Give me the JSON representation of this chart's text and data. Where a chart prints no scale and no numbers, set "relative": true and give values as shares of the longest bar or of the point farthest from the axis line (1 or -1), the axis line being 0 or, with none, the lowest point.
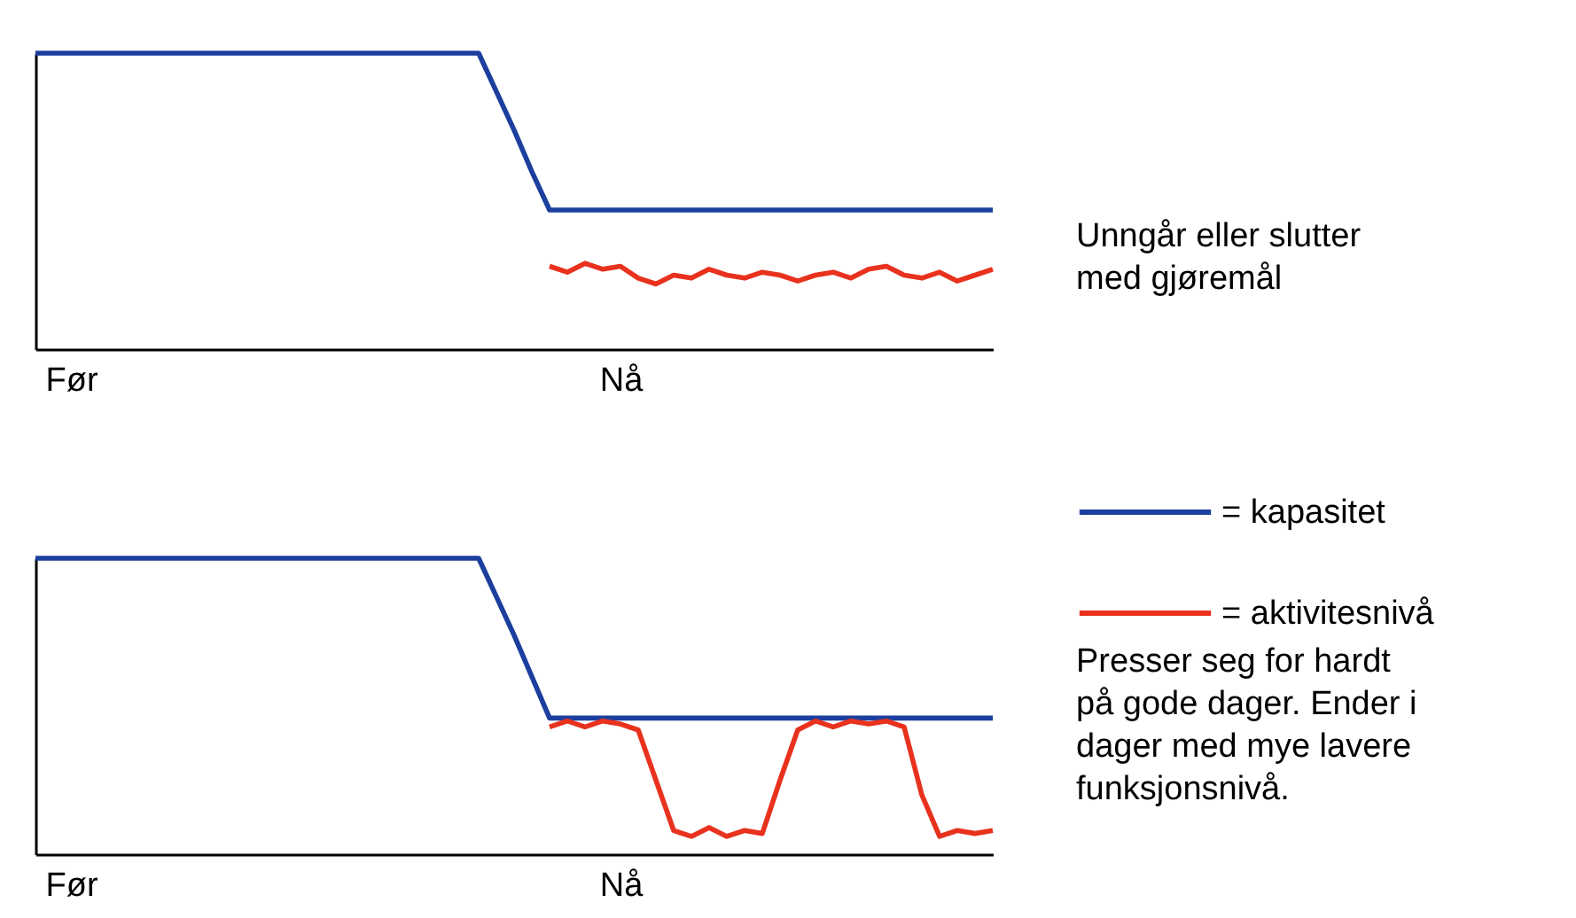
{
  "chart_data": [
    {
      "type": "line",
      "relative": true,
      "categories": [
        null,
        null,
        "Før",
        null,
        null,
        null,
        null,
        null,
        null,
        null,
        null,
        null,
        null,
        null,
        null,
        null,
        null,
        null,
        null,
        null,
        null,
        null,
        null,
        null,
        null,
        null,
        null,
        null,
        null,
        null,
        null,
        null,
        null,
        "Nå",
        null,
        null,
        null,
        null,
        null,
        null,
        null,
        null,
        null,
        null,
        null,
        null,
        null,
        null,
        null,
        null,
        null,
        null,
        null,
        null,
        null
      ],
      "series": [
        {
          "name": "= kapasitet",
          "color": "#1c3f9e",
          "values": [
            1,
            1,
            1,
            1,
            1,
            1,
            1,
            1,
            1,
            1,
            1,
            1,
            1,
            1,
            1,
            1,
            1,
            1,
            1,
            1,
            1,
            1,
            1,
            1,
            1,
            1,
            0.87,
            0.74,
            0.6,
            0.47,
            0.47,
            0.47,
            0.47,
            0.47,
            0.47,
            0.47,
            0.47,
            0.47,
            0.47,
            0.47,
            0.47,
            0.47,
            0.47,
            0.47,
            0.47,
            0.47,
            0.47,
            0.47,
            0.47,
            0.47,
            0.47,
            0.47,
            0.47,
            0.47,
            0.47
          ]
        },
        {
          "name": "= aktivitesnivå",
          "color": "#e8321e",
          "values": [
            null,
            null,
            null,
            null,
            null,
            null,
            null,
            null,
            null,
            null,
            null,
            null,
            null,
            null,
            null,
            null,
            null,
            null,
            null,
            null,
            null,
            null,
            null,
            null,
            null,
            null,
            null,
            null,
            null,
            0.28,
            0.26,
            0.29,
            0.27,
            0.28,
            0.24,
            0.22,
            0.25,
            0.24,
            0.27,
            0.25,
            0.24,
            0.26,
            0.25,
            0.23,
            0.25,
            0.26,
            0.24,
            0.27,
            0.28,
            0.25,
            0.24,
            0.26,
            0.23,
            0.25,
            0.27
          ]
        }
      ],
      "legend": "bottom right",
      "annotations": [
        "Unngår eller slutter med gjøremål"
      ]
    },
    {
      "type": "line",
      "relative": true,
      "categories": [
        null,
        null,
        "Før",
        null,
        null,
        null,
        null,
        null,
        null,
        null,
        null,
        null,
        null,
        null,
        null,
        null,
        null,
        null,
        null,
        null,
        null,
        null,
        null,
        null,
        null,
        null,
        null,
        null,
        null,
        null,
        null,
        null,
        null,
        "Nå",
        null,
        null,
        null,
        null,
        null,
        null,
        null,
        null,
        null,
        null,
        null,
        null,
        null,
        null,
        null,
        null,
        null,
        null,
        null,
        null,
        null
      ],
      "series": [
        {
          "color": "#1c3f9e",
          "values": [
            1,
            1,
            1,
            1,
            1,
            1,
            1,
            1,
            1,
            1,
            1,
            1,
            1,
            1,
            1,
            1,
            1,
            1,
            1,
            1,
            1,
            1,
            1,
            1,
            1,
            1,
            0.87,
            0.74,
            0.6,
            0.46,
            0.46,
            0.46,
            0.46,
            0.46,
            0.46,
            0.46,
            0.46,
            0.46,
            0.46,
            0.46,
            0.46,
            0.46,
            0.46,
            0.46,
            0.46,
            0.46,
            0.46,
            0.46,
            0.46,
            0.46,
            0.46,
            0.46,
            0.46,
            0.46,
            0.46
          ]
        },
        {
          "color": "#e8321e",
          "values": [
            null,
            null,
            null,
            null,
            null,
            null,
            null,
            null,
            null,
            null,
            null,
            null,
            null,
            null,
            null,
            null,
            null,
            null,
            null,
            null,
            null,
            null,
            null,
            null,
            null,
            null,
            null,
            null,
            null,
            0.43,
            0.45,
            0.43,
            0.45,
            0.44,
            0.42,
            0.25,
            0.08,
            0.06,
            0.09,
            0.06,
            0.08,
            0.07,
            0.25,
            0.42,
            0.45,
            0.43,
            0.45,
            0.44,
            0.45,
            0.43,
            0.2,
            0.06,
            0.08,
            0.07,
            0.08
          ]
        }
      ],
      "annotations": [
        "Presser seg for hardt på gode dager. Ender i dager med mye lavere funksjonsnivå."
      ]
    }
  ]
}
